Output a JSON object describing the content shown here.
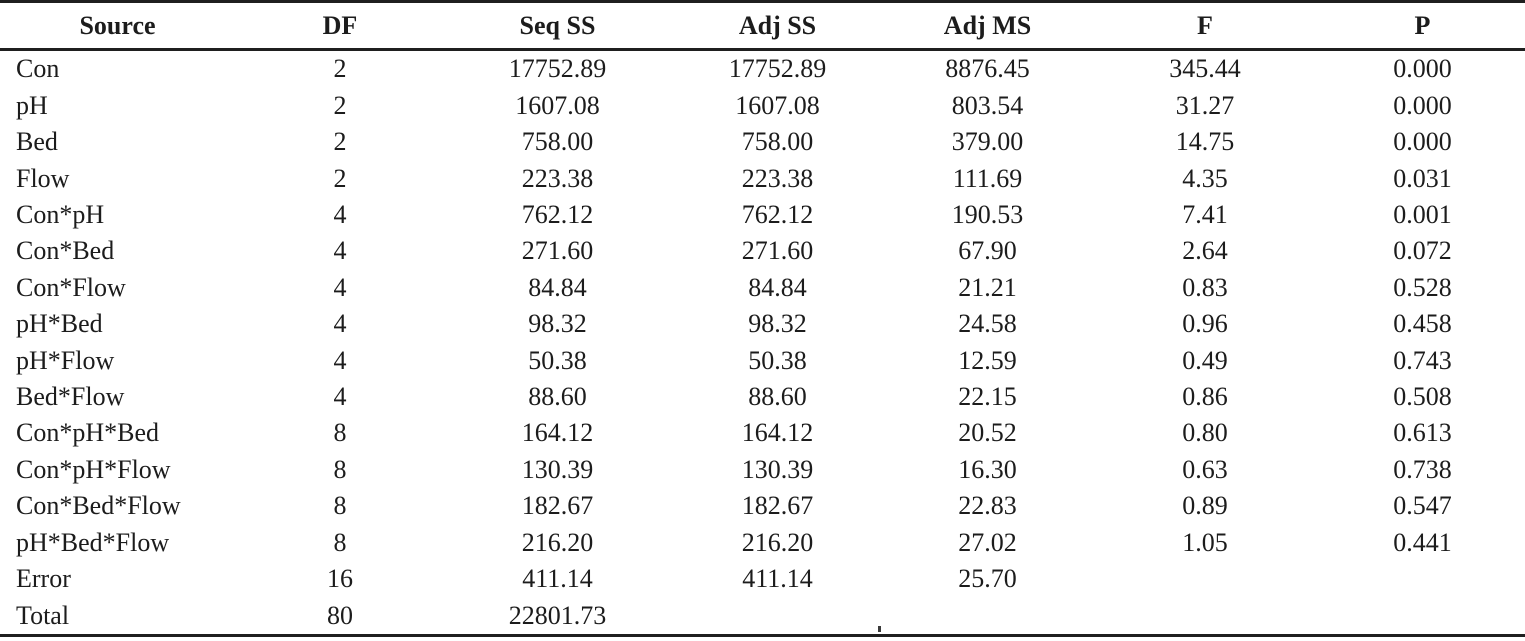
{
  "table": {
    "columns": [
      "Source",
      "DF",
      "Seq SS",
      "Adj SS",
      "Adj MS",
      "F",
      "P"
    ],
    "rows": [
      [
        "Con",
        "2",
        "17752.89",
        "17752.89",
        "8876.45",
        "345.44",
        "0.000"
      ],
      [
        "pH",
        "2",
        "1607.08",
        "1607.08",
        "803.54",
        "31.27",
        "0.000"
      ],
      [
        "Bed",
        "2",
        "758.00",
        "758.00",
        "379.00",
        "14.75",
        "0.000"
      ],
      [
        "Flow",
        "2",
        "223.38",
        "223.38",
        "111.69",
        "4.35",
        "0.031"
      ],
      [
        "Con*pH",
        "4",
        "762.12",
        "762.12",
        "190.53",
        "7.41",
        "0.001"
      ],
      [
        "Con*Bed",
        "4",
        "271.60",
        "271.60",
        "67.90",
        "2.64",
        "0.072"
      ],
      [
        "Con*Flow",
        "4",
        "84.84",
        "84.84",
        "21.21",
        "0.83",
        "0.528"
      ],
      [
        "pH*Bed",
        "4",
        "98.32",
        "98.32",
        "24.58",
        "0.96",
        "0.458"
      ],
      [
        "pH*Flow",
        "4",
        "50.38",
        "50.38",
        "12.59",
        "0.49",
        "0.743"
      ],
      [
        "Bed*Flow",
        "4",
        "88.60",
        "88.60",
        "22.15",
        "0.86",
        "0.508"
      ],
      [
        "Con*pH*Bed",
        "8",
        "164.12",
        "164.12",
        "20.52",
        "0.80",
        "0.613"
      ],
      [
        "Con*pH*Flow",
        "8",
        "130.39",
        "130.39",
        "16.30",
        "0.63",
        "0.738"
      ],
      [
        "Con*Bed*Flow",
        "8",
        "182.67",
        "182.67",
        "22.83",
        "0.89",
        "0.547"
      ],
      [
        "pH*Bed*Flow",
        "8",
        "216.20",
        "216.20",
        "27.02",
        "1.05",
        "0.441"
      ],
      [
        "Error",
        "16",
        "411.14",
        "411.14",
        "25.70",
        "",
        ""
      ],
      [
        "Total",
        "80",
        "22801.73",
        "",
        "",
        "",
        ""
      ]
    ]
  },
  "colors": {
    "background": "#ffffff",
    "text": "#1c1c1c",
    "rule": "#1f1f1f"
  }
}
